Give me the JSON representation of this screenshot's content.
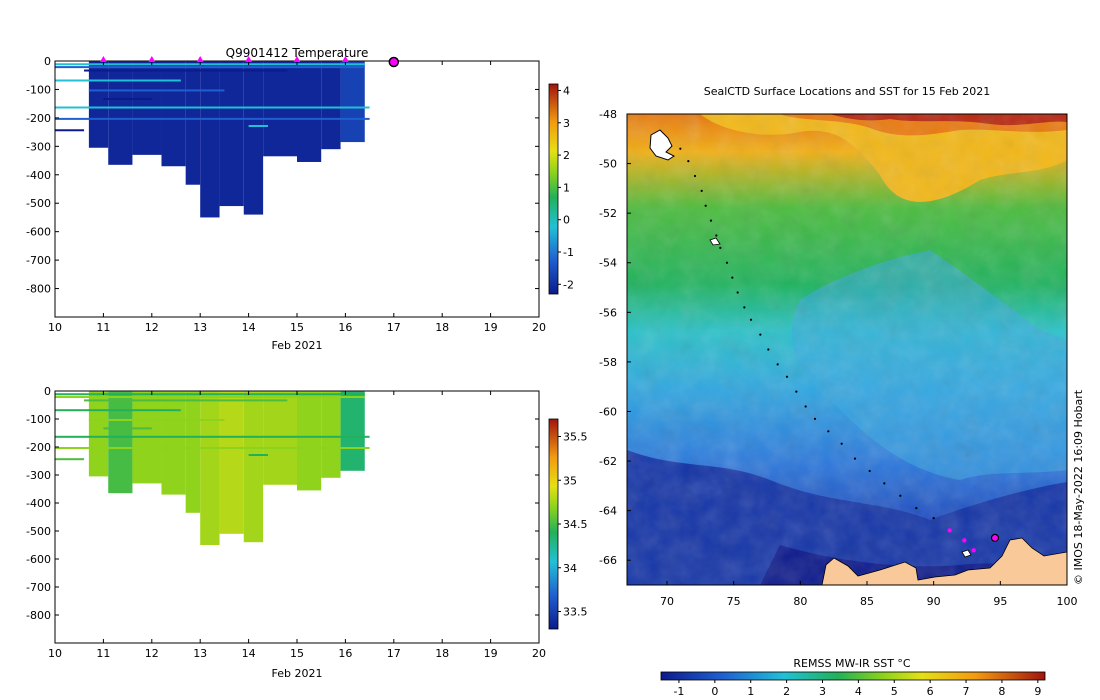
{
  "top_panel": {
    "title": "Q9901412  Temperature",
    "xlabel": "Feb 2021",
    "x_ticks": [
      "10",
      "11",
      "12",
      "13",
      "14",
      "15",
      "16",
      "17",
      "18",
      "19",
      "20"
    ],
    "y_ticks": [
      "0",
      "-100",
      "-200",
      "-300",
      "-400",
      "-500",
      "-600",
      "-700",
      "-800"
    ],
    "cbar_ticks": [
      "4",
      "3",
      "2",
      "1",
      "0",
      "-1",
      "-2"
    ]
  },
  "bottom_panel": {
    "xlabel": "Feb 2021",
    "x_ticks": [
      "10",
      "11",
      "12",
      "13",
      "14",
      "15",
      "16",
      "17",
      "18",
      "19",
      "20"
    ],
    "y_ticks": [
      "0",
      "-100",
      "-200",
      "-300",
      "-400",
      "-500",
      "-600",
      "-700",
      "-800"
    ],
    "cbar_ticks": [
      "35.5",
      "35",
      "34.5",
      "34",
      "33.5"
    ]
  },
  "map": {
    "title": "SealCTD Surface Locations and SST for 15 Feb 2021",
    "lon_ticks": [
      "70",
      "75",
      "80",
      "85",
      "90",
      "95",
      "100"
    ],
    "lat_ticks": [
      "-48",
      "-50",
      "-52",
      "-54",
      "-56",
      "-58",
      "-60",
      "-62",
      "-64",
      "-66"
    ],
    "credit": "© IMOS 18-May-2022 16:09 Hobart",
    "colorbar_title": "REMSS MW-IR SST °C",
    "colorbar_ticks": [
      "-1",
      "0",
      "1",
      "2",
      "3",
      "4",
      "5",
      "6",
      "7",
      "8",
      "9"
    ]
  },
  "chart_data": [
    {
      "type": "heatmap",
      "title": "Q9901412  Temperature",
      "xlabel": "Feb 2021",
      "ylabel": "",
      "xlim": [
        10,
        20
      ],
      "ylim": [
        -900,
        0
      ],
      "colorbar_range": [
        -2.3,
        4.2
      ],
      "profile_days": [
        11,
        12,
        13,
        14,
        15,
        16
      ],
      "current_day": 17,
      "deep_profiles": [
        {
          "x0": 10.7,
          "x1": 11.1,
          "bottom": -305,
          "value": -2.1
        },
        {
          "x0": 11.1,
          "x1": 11.6,
          "bottom": -365,
          "value": -2.1
        },
        {
          "x0": 11.6,
          "x1": 12.2,
          "bottom": -330,
          "value": -2.1
        },
        {
          "x0": 12.2,
          "x1": 12.7,
          "bottom": -370,
          "value": -2.1
        },
        {
          "x0": 12.7,
          "x1": 13.0,
          "bottom": -435,
          "value": -2.1
        },
        {
          "x0": 13.0,
          "x1": 13.4,
          "bottom": -550,
          "value": -2.1
        },
        {
          "x0": 13.4,
          "x1": 13.9,
          "bottom": -510,
          "value": -2.1
        },
        {
          "x0": 13.9,
          "x1": 14.3,
          "bottom": -540,
          "value": -2.1
        },
        {
          "x0": 14.3,
          "x1": 15.0,
          "bottom": -335,
          "value": -2.1
        },
        {
          "x0": 15.0,
          "x1": 15.5,
          "bottom": -355,
          "value": -2.1
        },
        {
          "x0": 15.5,
          "x1": 15.9,
          "bottom": -310,
          "value": -2.1
        },
        {
          "x0": 15.9,
          "x1": 16.4,
          "bottom": -285,
          "value": -1.7
        }
      ]
    },
    {
      "type": "heatmap",
      "title": "",
      "xlabel": "Feb 2021",
      "ylabel": "",
      "xlim": [
        10,
        20
      ],
      "ylim": [
        -900,
        0
      ],
      "colorbar_range": [
        33.3,
        35.7
      ],
      "deep_profiles": [
        {
          "x0": 10.7,
          "x1": 11.1,
          "bottom": -305,
          "value": 34.7
        },
        {
          "x0": 11.1,
          "x1": 11.6,
          "bottom": -365,
          "value": 34.5
        },
        {
          "x0": 11.6,
          "x1": 12.2,
          "bottom": -330,
          "value": 34.7
        },
        {
          "x0": 12.2,
          "x1": 12.7,
          "bottom": -370,
          "value": 34.7
        },
        {
          "x0": 12.7,
          "x1": 13.0,
          "bottom": -435,
          "value": 34.7
        },
        {
          "x0": 13.0,
          "x1": 13.4,
          "bottom": -550,
          "value": 34.75
        },
        {
          "x0": 13.4,
          "x1": 13.9,
          "bottom": -510,
          "value": 34.8
        },
        {
          "x0": 13.9,
          "x1": 14.3,
          "bottom": -540,
          "value": 34.75
        },
        {
          "x0": 14.3,
          "x1": 15.0,
          "bottom": -335,
          "value": 34.75
        },
        {
          "x0": 15.0,
          "x1": 15.5,
          "bottom": -355,
          "value": 34.7
        },
        {
          "x0": 15.5,
          "x1": 15.9,
          "bottom": -310,
          "value": 34.7
        },
        {
          "x0": 15.9,
          "x1": 16.4,
          "bottom": -285,
          "value": 34.35
        }
      ]
    },
    {
      "type": "heatmap",
      "title": "SealCTD Surface Locations and SST for 15 Feb 2021",
      "xlabel": "",
      "ylabel": "",
      "xlim": [
        67,
        100
      ],
      "ylim": [
        -67,
        -48
      ],
      "colorbar_label": "REMSS MW-IR SST °C",
      "colorbar_range": [
        -1.5,
        9.2
      ],
      "track": [
        [
          71.0,
          -49.4
        ],
        [
          71.6,
          -49.9
        ],
        [
          72.1,
          -50.5
        ],
        [
          72.6,
          -51.1
        ],
        [
          72.9,
          -51.7
        ],
        [
          73.3,
          -52.3
        ],
        [
          73.7,
          -52.9
        ],
        [
          74.0,
          -53.4
        ],
        [
          74.5,
          -54.0
        ],
        [
          74.9,
          -54.6
        ],
        [
          75.3,
          -55.2
        ],
        [
          75.8,
          -55.8
        ],
        [
          76.3,
          -56.3
        ],
        [
          77.0,
          -56.9
        ],
        [
          77.6,
          -57.5
        ],
        [
          78.3,
          -58.1
        ],
        [
          79.0,
          -58.6
        ],
        [
          79.7,
          -59.2
        ],
        [
          80.4,
          -59.8
        ],
        [
          81.1,
          -60.3
        ],
        [
          82.1,
          -60.8
        ],
        [
          83.1,
          -61.3
        ],
        [
          84.1,
          -61.9
        ],
        [
          85.2,
          -62.4
        ],
        [
          86.3,
          -62.9
        ],
        [
          87.5,
          -63.4
        ],
        [
          88.7,
          -63.9
        ],
        [
          90.0,
          -64.3
        ],
        [
          91.2,
          -64.8
        ],
        [
          92.3,
          -65.2
        ],
        [
          93.0,
          -65.6
        ]
      ],
      "current_position": [
        94.6,
        -65.1
      ]
    }
  ]
}
